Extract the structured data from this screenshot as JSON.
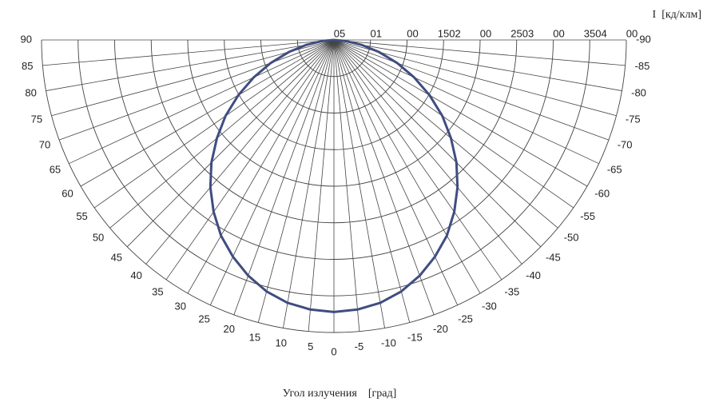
{
  "chart_data": {
    "type": "polar",
    "radial_axis_label": "I  [кд/клм]",
    "angle_axis_label": "Угол излучения    [град]",
    "scale_text": [
      "05",
      "01",
      "00",
      "1502",
      "00",
      "2503",
      "00",
      "3504",
      "00"
    ],
    "rlim": [
      0,
      400
    ],
    "rticks": [
      50,
      100,
      150,
      200,
      250,
      300,
      350,
      400
    ],
    "thetaticks": [
      90,
      85,
      80,
      75,
      70,
      65,
      60,
      55,
      50,
      45,
      40,
      35,
      30,
      25,
      20,
      15,
      10,
      5,
      0,
      -5,
      -10,
      -15,
      -20,
      -25,
      -30,
      -35,
      -40,
      -45,
      -50,
      -55,
      -60,
      -65,
      -70,
      -75,
      -80,
      -85,
      -90
    ],
    "grid": true,
    "series": [
      {
        "color": "#3f4d80",
        "x": [
          -90,
          -85,
          -80,
          -75,
          -70,
          -65,
          -60,
          -55,
          -50,
          -45,
          -40,
          -35,
          -30,
          -25,
          -20,
          -15,
          -10,
          -5,
          0,
          5,
          10,
          15,
          20,
          25,
          30,
          35,
          40,
          45,
          50,
          55,
          60,
          65,
          70,
          75,
          80,
          85,
          90
        ],
        "values": [
          0,
          16,
          38,
          64,
          92,
          121,
          151,
          181,
          209,
          237,
          263,
          287,
          309,
          327,
          343,
          356,
          365,
          370,
          372,
          370,
          365,
          356,
          343,
          327,
          309,
          287,
          263,
          237,
          209,
          181,
          151,
          121,
          92,
          64,
          38,
          16,
          0
        ]
      }
    ]
  }
}
